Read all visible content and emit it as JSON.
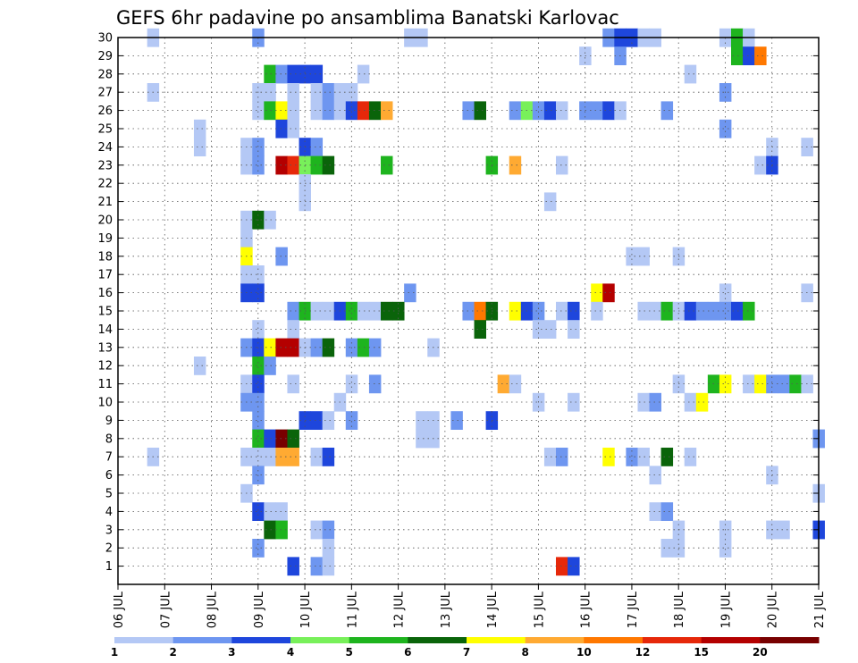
{
  "chart_data": {
    "type": "heatmap",
    "title": "GEFS 6hr padavine po ansamblima Banatski Karlovac",
    "xlabel": "",
    "ylabel": "",
    "x_tick_labels": [
      "06 JUL",
      "07 JUL",
      "08 JUL",
      "09 JUL",
      "10 JUL",
      "11 JUL",
      "12 JUL",
      "13 JUL",
      "14 JUL",
      "15 JUL",
      "16 JUL",
      "17 JUL",
      "18 JUL",
      "19 JUL",
      "20 JUL",
      "21 JUL"
    ],
    "y_tick_labels": [
      "1",
      "2",
      "3",
      "4",
      "5",
      "6",
      "7",
      "8",
      "9",
      "10",
      "11",
      "12",
      "13",
      "14",
      "15",
      "16",
      "17",
      "18",
      "19",
      "20",
      "21",
      "22",
      "23",
      "24",
      "25",
      "26",
      "27",
      "28",
      "29",
      "30"
    ],
    "xlim_steps": [
      0,
      60
    ],
    "ylim_members": [
      0,
      30
    ],
    "grid": true,
    "legend_position": "bottom",
    "legend": {
      "labels": [
        "1",
        "2",
        "3",
        "4",
        "5",
        "6",
        "7",
        "8",
        "10",
        "12",
        "15",
        "20"
      ],
      "colors": [
        "#b4c8f5",
        "#6e96f0",
        "#1e46dc",
        "#78f05a",
        "#1eb41e",
        "#0a640a",
        "#ffff00",
        "#ffaa32",
        "#ff7800",
        "#e6280a",
        "#b40000",
        "#780000"
      ]
    },
    "cells": [
      [
        3,
        30,
        1
      ],
      [
        12,
        30,
        2
      ],
      [
        25,
        30,
        1
      ],
      [
        26,
        30,
        1
      ],
      [
        42,
        30,
        2
      ],
      [
        43,
        30,
        3
      ],
      [
        44,
        30,
        3
      ],
      [
        45,
        30,
        1
      ],
      [
        46,
        30,
        1
      ],
      [
        52,
        30,
        1
      ],
      [
        53,
        30,
        5
      ],
      [
        54,
        30,
        1
      ],
      [
        40,
        29,
        1
      ],
      [
        43,
        29,
        2
      ],
      [
        53,
        29,
        5
      ],
      [
        54,
        29,
        3
      ],
      [
        55,
        29,
        9
      ],
      [
        13,
        28,
        5
      ],
      [
        14,
        28,
        2
      ],
      [
        15,
        28,
        3
      ],
      [
        16,
        28,
        3
      ],
      [
        17,
        28,
        3
      ],
      [
        21,
        28,
        1
      ],
      [
        49,
        28,
        1
      ],
      [
        3,
        27,
        1
      ],
      [
        12,
        27,
        1
      ],
      [
        13,
        27,
        1
      ],
      [
        15,
        27,
        1
      ],
      [
        17,
        27,
        1
      ],
      [
        18,
        27,
        2
      ],
      [
        19,
        27,
        1
      ],
      [
        20,
        27,
        1
      ],
      [
        52,
        27,
        2
      ],
      [
        12,
        26,
        1
      ],
      [
        13,
        26,
        5
      ],
      [
        14,
        26,
        7
      ],
      [
        15,
        26,
        1
      ],
      [
        17,
        26,
        1
      ],
      [
        18,
        26,
        2
      ],
      [
        19,
        26,
        1
      ],
      [
        20,
        26,
        3
      ],
      [
        21,
        26,
        10
      ],
      [
        22,
        26,
        6
      ],
      [
        23,
        26,
        8
      ],
      [
        30,
        26,
        2
      ],
      [
        31,
        26,
        6
      ],
      [
        34,
        26,
        2
      ],
      [
        35,
        26,
        4
      ],
      [
        36,
        26,
        2
      ],
      [
        37,
        26,
        3
      ],
      [
        38,
        26,
        1
      ],
      [
        40,
        26,
        2
      ],
      [
        41,
        26,
        2
      ],
      [
        42,
        26,
        3
      ],
      [
        43,
        26,
        1
      ],
      [
        47,
        26,
        2
      ],
      [
        7,
        25,
        1
      ],
      [
        14,
        25,
        3
      ],
      [
        15,
        25,
        1
      ],
      [
        52,
        25,
        2
      ],
      [
        7,
        24,
        1
      ],
      [
        11,
        24,
        1
      ],
      [
        12,
        24,
        2
      ],
      [
        16,
        24,
        3
      ],
      [
        17,
        24,
        2
      ],
      [
        56,
        24,
        1
      ],
      [
        59,
        24,
        1
      ],
      [
        11,
        23,
        1
      ],
      [
        12,
        23,
        2
      ],
      [
        14,
        23,
        11
      ],
      [
        15,
        23,
        10
      ],
      [
        16,
        23,
        4
      ],
      [
        17,
        23,
        5
      ],
      [
        18,
        23,
        6
      ],
      [
        23,
        23,
        5
      ],
      [
        32,
        23,
        5
      ],
      [
        34,
        23,
        8
      ],
      [
        38,
        23,
        1
      ],
      [
        55,
        23,
        1
      ],
      [
        56,
        23,
        3
      ],
      [
        16,
        22,
        1
      ],
      [
        16,
        21,
        1
      ],
      [
        37,
        21,
        1
      ],
      [
        11,
        20,
        1
      ],
      [
        12,
        20,
        6
      ],
      [
        13,
        20,
        1
      ],
      [
        11,
        19,
        1
      ],
      [
        11,
        18,
        7
      ],
      [
        14,
        18,
        2
      ],
      [
        44,
        18,
        1
      ],
      [
        45,
        18,
        1
      ],
      [
        48,
        18,
        1
      ],
      [
        11,
        17,
        1
      ],
      [
        12,
        17,
        1
      ],
      [
        11,
        16,
        3
      ],
      [
        12,
        16,
        3
      ],
      [
        25,
        16,
        2
      ],
      [
        41,
        16,
        7
      ],
      [
        42,
        16,
        11
      ],
      [
        52,
        16,
        1
      ],
      [
        59,
        16,
        1
      ],
      [
        15,
        15,
        2
      ],
      [
        16,
        15,
        5
      ],
      [
        17,
        15,
        1
      ],
      [
        18,
        15,
        1
      ],
      [
        19,
        15,
        3
      ],
      [
        20,
        15,
        5
      ],
      [
        21,
        15,
        1
      ],
      [
        22,
        15,
        1
      ],
      [
        23,
        15,
        6
      ],
      [
        24,
        15,
        6
      ],
      [
        30,
        15,
        2
      ],
      [
        31,
        15,
        9
      ],
      [
        32,
        15,
        6
      ],
      [
        34,
        15,
        7
      ],
      [
        35,
        15,
        3
      ],
      [
        36,
        15,
        2
      ],
      [
        38,
        15,
        1
      ],
      [
        39,
        15,
        3
      ],
      [
        41,
        15,
        1
      ],
      [
        45,
        15,
        1
      ],
      [
        46,
        15,
        1
      ],
      [
        47,
        15,
        5
      ],
      [
        48,
        15,
        1
      ],
      [
        49,
        15,
        3
      ],
      [
        50,
        15,
        2
      ],
      [
        51,
        15,
        2
      ],
      [
        52,
        15,
        2
      ],
      [
        53,
        15,
        3
      ],
      [
        54,
        15,
        5
      ],
      [
        12,
        14,
        1
      ],
      [
        15,
        14,
        1
      ],
      [
        36,
        14,
        1
      ],
      [
        37,
        14,
        1
      ],
      [
        39,
        14,
        1
      ],
      [
        31,
        14,
        6
      ],
      [
        11,
        13,
        2
      ],
      [
        12,
        13,
        3
      ],
      [
        13,
        13,
        7
      ],
      [
        14,
        13,
        11
      ],
      [
        15,
        13,
        11
      ],
      [
        16,
        13,
        1
      ],
      [
        17,
        13,
        2
      ],
      [
        18,
        13,
        6
      ],
      [
        20,
        13,
        2
      ],
      [
        21,
        13,
        5
      ],
      [
        22,
        13,
        2
      ],
      [
        27,
        13,
        1
      ],
      [
        7,
        12,
        1
      ],
      [
        12,
        12,
        5
      ],
      [
        13,
        12,
        2
      ],
      [
        11,
        11,
        1
      ],
      [
        12,
        11,
        3
      ],
      [
        15,
        11,
        1
      ],
      [
        20,
        11,
        1
      ],
      [
        22,
        11,
        2
      ],
      [
        33,
        11,
        8
      ],
      [
        34,
        11,
        1
      ],
      [
        48,
        11,
        1
      ],
      [
        51,
        11,
        5
      ],
      [
        52,
        11,
        7
      ],
      [
        54,
        11,
        1
      ],
      [
        55,
        11,
        7
      ],
      [
        56,
        11,
        2
      ],
      [
        57,
        11,
        2
      ],
      [
        58,
        11,
        5
      ],
      [
        59,
        11,
        1
      ],
      [
        11,
        10,
        2
      ],
      [
        12,
        10,
        2
      ],
      [
        19,
        10,
        1
      ],
      [
        36,
        10,
        1
      ],
      [
        39,
        10,
        1
      ],
      [
        45,
        10,
        1
      ],
      [
        46,
        10,
        2
      ],
      [
        49,
        10,
        1
      ],
      [
        50,
        10,
        7
      ],
      [
        12,
        9,
        2
      ],
      [
        16,
        9,
        3
      ],
      [
        17,
        9,
        3
      ],
      [
        18,
        9,
        1
      ],
      [
        20,
        9,
        2
      ],
      [
        26,
        9,
        1
      ],
      [
        27,
        9,
        1
      ],
      [
        29,
        9,
        2
      ],
      [
        32,
        9,
        3
      ],
      [
        12,
        8,
        5
      ],
      [
        13,
        8,
        3
      ],
      [
        14,
        8,
        12
      ],
      [
        15,
        8,
        6
      ],
      [
        26,
        8,
        1
      ],
      [
        27,
        8,
        1
      ],
      [
        60,
        8,
        2
      ],
      [
        3,
        7,
        1
      ],
      [
        11,
        7,
        1
      ],
      [
        12,
        7,
        1
      ],
      [
        13,
        7,
        1
      ],
      [
        14,
        7,
        8
      ],
      [
        15,
        7,
        8
      ],
      [
        17,
        7,
        1
      ],
      [
        18,
        7,
        3
      ],
      [
        37,
        7,
        1
      ],
      [
        38,
        7,
        2
      ],
      [
        42,
        7,
        7
      ],
      [
        44,
        7,
        2
      ],
      [
        45,
        7,
        1
      ],
      [
        47,
        7,
        6
      ],
      [
        49,
        7,
        1
      ],
      [
        12,
        6,
        2
      ],
      [
        46,
        6,
        1
      ],
      [
        56,
        6,
        1
      ],
      [
        11,
        5,
        1
      ],
      [
        60,
        5,
        1
      ],
      [
        12,
        4,
        3
      ],
      [
        13,
        4,
        1
      ],
      [
        14,
        4,
        1
      ],
      [
        46,
        4,
        1
      ],
      [
        47,
        4,
        2
      ],
      [
        13,
        3,
        6
      ],
      [
        14,
        3,
        5
      ],
      [
        17,
        3,
        1
      ],
      [
        18,
        3,
        2
      ],
      [
        48,
        3,
        1
      ],
      [
        52,
        3,
        1
      ],
      [
        56,
        3,
        1
      ],
      [
        57,
        3,
        1
      ],
      [
        60,
        3,
        3
      ],
      [
        12,
        2,
        2
      ],
      [
        18,
        2,
        1
      ],
      [
        47,
        2,
        1
      ],
      [
        48,
        2,
        1
      ],
      [
        52,
        2,
        1
      ],
      [
        15,
        1,
        3
      ],
      [
        17,
        1,
        2
      ],
      [
        18,
        1,
        1
      ],
      [
        38,
        1,
        10
      ],
      [
        39,
        1,
        3
      ]
    ]
  }
}
